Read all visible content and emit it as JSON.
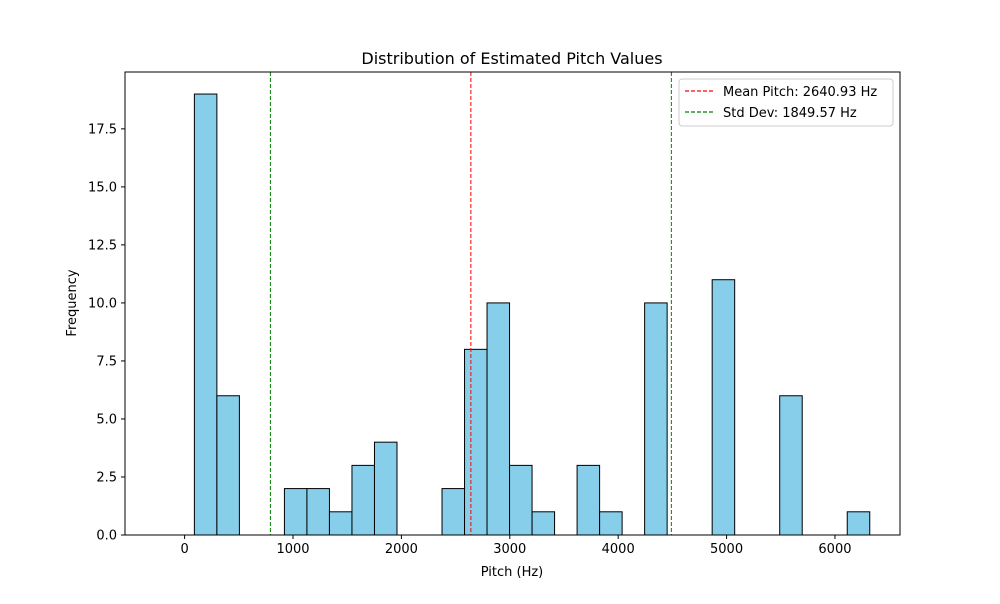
{
  "chart_data": {
    "type": "bar",
    "title": "Distribution of Estimated Pitch Values",
    "xlabel": "Pitch (Hz)",
    "ylabel": "Frequency",
    "xlim": [
      -550,
      6600
    ],
    "ylim": [
      0,
      19.95
    ],
    "x_ticks": [
      0,
      1000,
      2000,
      3000,
      4000,
      5000,
      6000
    ],
    "y_ticks": [
      0.0,
      2.5,
      5.0,
      7.5,
      10.0,
      12.5,
      15.0,
      17.5
    ],
    "y_tick_labels": [
      "0.0",
      "2.5",
      "5.0",
      "7.5",
      "10.0",
      "12.5",
      "15.0",
      "17.5"
    ],
    "bin_width": 207.7,
    "bins": [
      {
        "start": 90,
        "count": 19
      },
      {
        "start": 297.7,
        "count": 6
      },
      {
        "start": 505.4,
        "count": 0
      },
      {
        "start": 713.1,
        "count": 0
      },
      {
        "start": 920.8,
        "count": 2
      },
      {
        "start": 1128.5,
        "count": 2
      },
      {
        "start": 1336.2,
        "count": 1
      },
      {
        "start": 1543.9,
        "count": 3
      },
      {
        "start": 1751.6,
        "count": 4
      },
      {
        "start": 1959.3,
        "count": 0
      },
      {
        "start": 2167.0,
        "count": 0
      },
      {
        "start": 2374.7,
        "count": 2
      },
      {
        "start": 2582.4,
        "count": 8
      },
      {
        "start": 2790.1,
        "count": 10
      },
      {
        "start": 2997.8,
        "count": 3
      },
      {
        "start": 3205.5,
        "count": 1
      },
      {
        "start": 3413.2,
        "count": 0
      },
      {
        "start": 3620.9,
        "count": 3
      },
      {
        "start": 3828.6,
        "count": 1
      },
      {
        "start": 4036.3,
        "count": 0
      },
      {
        "start": 4244.0,
        "count": 10
      },
      {
        "start": 4451.7,
        "count": 0
      },
      {
        "start": 4659.4,
        "count": 0
      },
      {
        "start": 4867.1,
        "count": 11
      },
      {
        "start": 5074.8,
        "count": 0
      },
      {
        "start": 5282.5,
        "count": 0
      },
      {
        "start": 5490.2,
        "count": 6
      },
      {
        "start": 5697.9,
        "count": 0
      },
      {
        "start": 5905.6,
        "count": 0
      },
      {
        "start": 6113.3,
        "count": 1
      }
    ],
    "lines": [
      {
        "label": "Mean Pitch: 2640.93 Hz",
        "x": 2640.93,
        "color": "#ff0000",
        "style": "dashed"
      },
      {
        "label": "Std Dev: 1849.57 Hz",
        "x": 791.36,
        "color": "#008000",
        "style": "dashed"
      },
      {
        "label": "",
        "x": 4490.5,
        "color": "#008000",
        "style": "dashed"
      }
    ],
    "legend": {
      "placement": "top-right",
      "entries": [
        {
          "label": "Mean Pitch: 2640.93 Hz",
          "color": "#ff0000"
        },
        {
          "label": "Std Dev: 1849.57 Hz",
          "color": "#008000"
        }
      ]
    },
    "bar_fill": "#87ceeb",
    "bar_edge": "#000000",
    "grid": false
  }
}
